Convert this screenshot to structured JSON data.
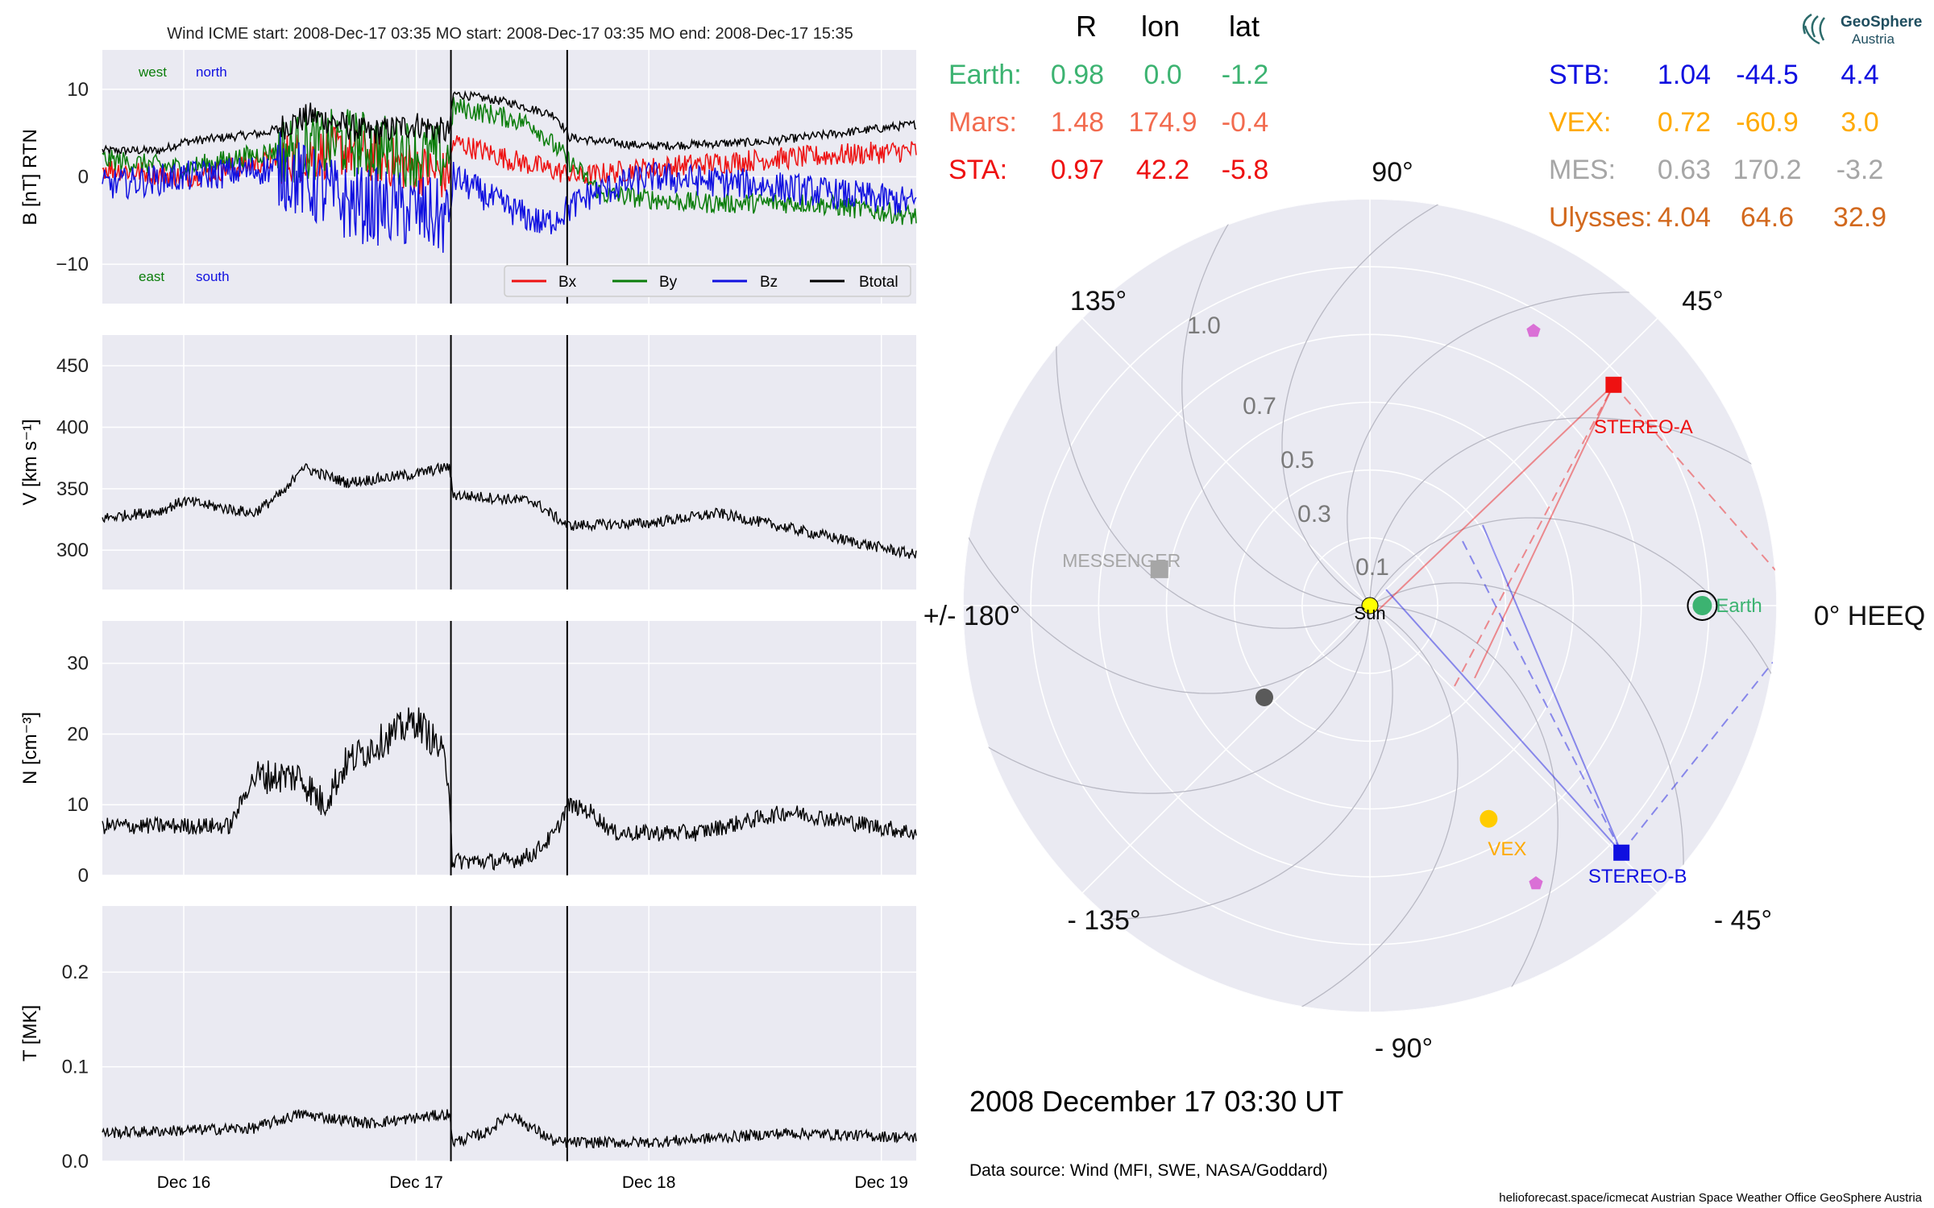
{
  "title": "Wind    ICME start: 2008-Dec-17 03:35   MO start: 2008-Dec-17 03:35   MO end: 2008-Dec-17 15:35",
  "colors": {
    "bx": "#ee1111",
    "by": "#0a7d0a",
    "bz": "#1010e0",
    "btotal": "#000000",
    "panel_bg": "#eaeaf2",
    "grid": "#ffffff",
    "earth": "#3cb371",
    "mars": "#f26b4f",
    "sta": "#ee1111",
    "stb": "#1010e0",
    "vex": "#ffaa00",
    "mes": "#a6a6a6",
    "ulysses": "#d2691e"
  },
  "time_axis": {
    "ticks": [
      "Dec 16",
      "Dec 17",
      "Dec 18",
      "Dec 19"
    ],
    "tick_days": [
      16,
      17,
      18,
      19
    ],
    "range_days": [
      15.65,
      19.15
    ]
  },
  "event_markers_days": [
    17.149,
    17.649
  ],
  "panel_b": {
    "ylabel": "B [nT] RTN",
    "ylim": [
      -14.5,
      14.5
    ],
    "yticks": [
      10,
      0,
      -10
    ],
    "ytick_labels": [
      "10",
      "0",
      "−10"
    ],
    "annotations": {
      "west": "west",
      "north": "north",
      "east": "east",
      "south": "south"
    },
    "legend": [
      "Bx",
      "By",
      "Bz",
      "Btotal"
    ]
  },
  "panel_v": {
    "ylabel": "V [km s⁻¹]",
    "ylim": [
      268,
      475
    ],
    "yticks": [
      450,
      400,
      350,
      300
    ]
  },
  "panel_n": {
    "ylabel": "N [cm⁻³]",
    "ylim": [
      0,
      36
    ],
    "yticks": [
      30,
      20,
      10,
      0
    ]
  },
  "panel_t": {
    "ylabel": "T [MK]",
    "ylim": [
      0,
      0.27
    ],
    "yticks": [
      0.2,
      0.1,
      0.0
    ],
    "ytick_labels": [
      "0.2",
      "0.1",
      "0.0"
    ]
  },
  "positions_header": {
    "r": "R",
    "lon": "lon",
    "lat": "lat"
  },
  "positions_left": [
    {
      "label": "Earth:",
      "r": "0.98",
      "lon": "0.0",
      "lat": "-1.2",
      "color": "#3cb371"
    },
    {
      "label": "Mars:",
      "r": "1.48",
      "lon": "174.9",
      "lat": "-0.4",
      "color": "#f26b4f"
    },
    {
      "label": "STA:",
      "r": "0.97",
      "lon": "42.2",
      "lat": "-5.8",
      "color": "#ee1111"
    }
  ],
  "positions_right": [
    {
      "label": "STB:",
      "r": "1.04",
      "lon": "-44.5",
      "lat": "4.4",
      "color": "#1010e0"
    },
    {
      "label": "VEX:",
      "r": "0.72",
      "lon": "-60.9",
      "lat": "3.0",
      "color": "#ffaa00"
    },
    {
      "label": "MES:",
      "r": "0.63",
      "lon": "170.2",
      "lat": "-3.2",
      "color": "#a6a6a6"
    },
    {
      "label": "Ulysses:",
      "r": "4.04",
      "lon": "64.6",
      "lat": "32.9",
      "color": "#d2691e"
    }
  ],
  "polar": {
    "angle_labels": [
      "90°",
      "45°",
      "0° HEEQ",
      "- 45°",
      "- 90°",
      "- 135°",
      "+/- 180°",
      "135°"
    ],
    "radial_labels": [
      "0.1",
      "0.3",
      "0.5",
      "0.7",
      "1.0"
    ],
    "bodies": {
      "sun": "Sun",
      "earth": "Earth",
      "stereo_a": "STEREO-A",
      "stereo_b": "STEREO-B",
      "vex": "VEX",
      "messenger": "MESSENGER"
    }
  },
  "date_label": "2008 December 17  03:30 UT",
  "data_source": "Data source: Wind (MFI, SWE, NASA/Goddard)",
  "footer": "helioforecast.space/icmecat   Austrian Space Weather Office   GeoSphere Austria",
  "logo": {
    "line1": "GeoSphere",
    "line2": "Austria"
  }
}
